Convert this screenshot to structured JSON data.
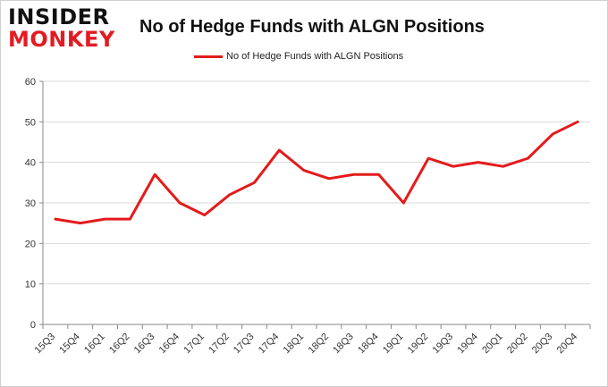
{
  "logo": {
    "line1": "INSIDER",
    "line2": "MONKEY"
  },
  "colors": {
    "series": "#e31b1b",
    "grid": "#d9d9d9",
    "axis": "#888888",
    "logo_accent": "#e31b23"
  },
  "chart_data": {
    "type": "line",
    "title": "No of Hedge Funds with ALGN Positions",
    "xlabel": "",
    "ylabel": "",
    "ylim": [
      0,
      60
    ],
    "yticks": [
      0,
      10,
      20,
      30,
      40,
      50,
      60
    ],
    "grid": true,
    "legend": "top-center",
    "categories": [
      "15Q3",
      "15Q4",
      "16Q1",
      "16Q2",
      "16Q3",
      "16Q4",
      "17Q1",
      "17Q2",
      "17Q3",
      "17Q4",
      "18Q1",
      "18Q2",
      "18Q3",
      "18Q4",
      "19Q1",
      "19Q2",
      "19Q3",
      "19Q4",
      "20Q1",
      "20Q2",
      "20Q3",
      "20Q4"
    ],
    "series": [
      {
        "name": "No of Hedge Funds with ALGN Positions",
        "values": [
          26,
          25,
          26,
          26,
          37,
          30,
          27,
          32,
          35,
          43,
          38,
          36,
          37,
          37,
          30,
          41,
          39,
          40,
          39,
          41,
          47,
          50
        ]
      }
    ]
  }
}
